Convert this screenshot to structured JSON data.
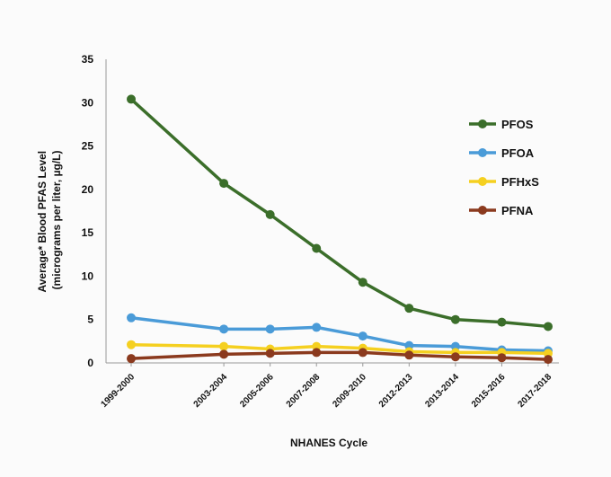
{
  "chart_data": {
    "type": "line",
    "title": "",
    "xlabel": "NHANES Cycle",
    "ylabel_line1": "Average* Blood PFAS Level",
    "ylabel_line2": "(micrograms per liter, µg/L)",
    "categories": [
      "1999-2000",
      "2003-2004",
      "2005-2006",
      "2007-2008",
      "2009-2010",
      "2012-2013",
      "2013-2014",
      "2015-2016",
      "2017-2018"
    ],
    "x_positions": [
      1999.5,
      2003.5,
      2005.5,
      2007.5,
      2009.5,
      2011.5,
      2013.5,
      2015.5,
      2017.5
    ],
    "ylim": [
      0,
      35
    ],
    "yticks": [
      0,
      5,
      10,
      15,
      20,
      25,
      30,
      35
    ],
    "grid": false,
    "legend_position": "right",
    "series": [
      {
        "name": "PFOS",
        "color": "#3b6e2a",
        "values": [
          30.4,
          20.7,
          17.1,
          13.2,
          9.3,
          6.3,
          5.0,
          4.7,
          4.2
        ]
      },
      {
        "name": "PFOA",
        "color": "#4a9bd8",
        "values": [
          5.2,
          3.9,
          3.9,
          4.1,
          3.1,
          2.0,
          1.9,
          1.5,
          1.4
        ]
      },
      {
        "name": "PFHxS",
        "color": "#f5d020",
        "values": [
          2.1,
          1.9,
          1.6,
          1.9,
          1.7,
          1.3,
          1.2,
          1.2,
          1.1
        ]
      },
      {
        "name": "PFNA",
        "color": "#8b3a1e",
        "values": [
          0.5,
          1.0,
          1.1,
          1.2,
          1.2,
          0.9,
          0.7,
          0.6,
          0.4
        ]
      }
    ]
  }
}
